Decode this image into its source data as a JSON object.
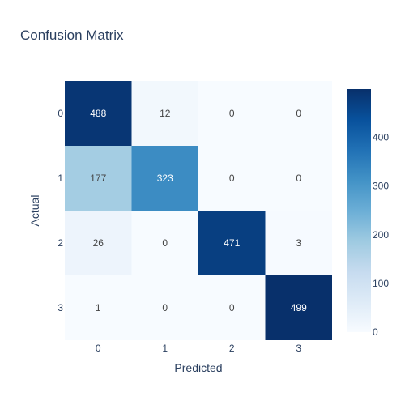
{
  "title": "Confusion Matrix",
  "chart_data": {
    "type": "heatmap",
    "title": "Confusion Matrix",
    "xlabel": "Predicted",
    "ylabel": "Actual",
    "x_categories": [
      "0",
      "1",
      "2",
      "3"
    ],
    "y_categories": [
      "0",
      "1",
      "2",
      "3"
    ],
    "z": [
      [
        488,
        12,
        0,
        0
      ],
      [
        177,
        323,
        0,
        0
      ],
      [
        26,
        0,
        471,
        3
      ],
      [
        1,
        0,
        0,
        499
      ]
    ],
    "zrange": [
      0,
      499
    ],
    "colorscale": "Blues",
    "colorbar_ticks": [
      "0",
      "100",
      "200",
      "300",
      "400"
    ],
    "colorbar_tick_values": [
      0,
      100,
      200,
      300,
      400
    ],
    "show_cell_text": true
  }
}
